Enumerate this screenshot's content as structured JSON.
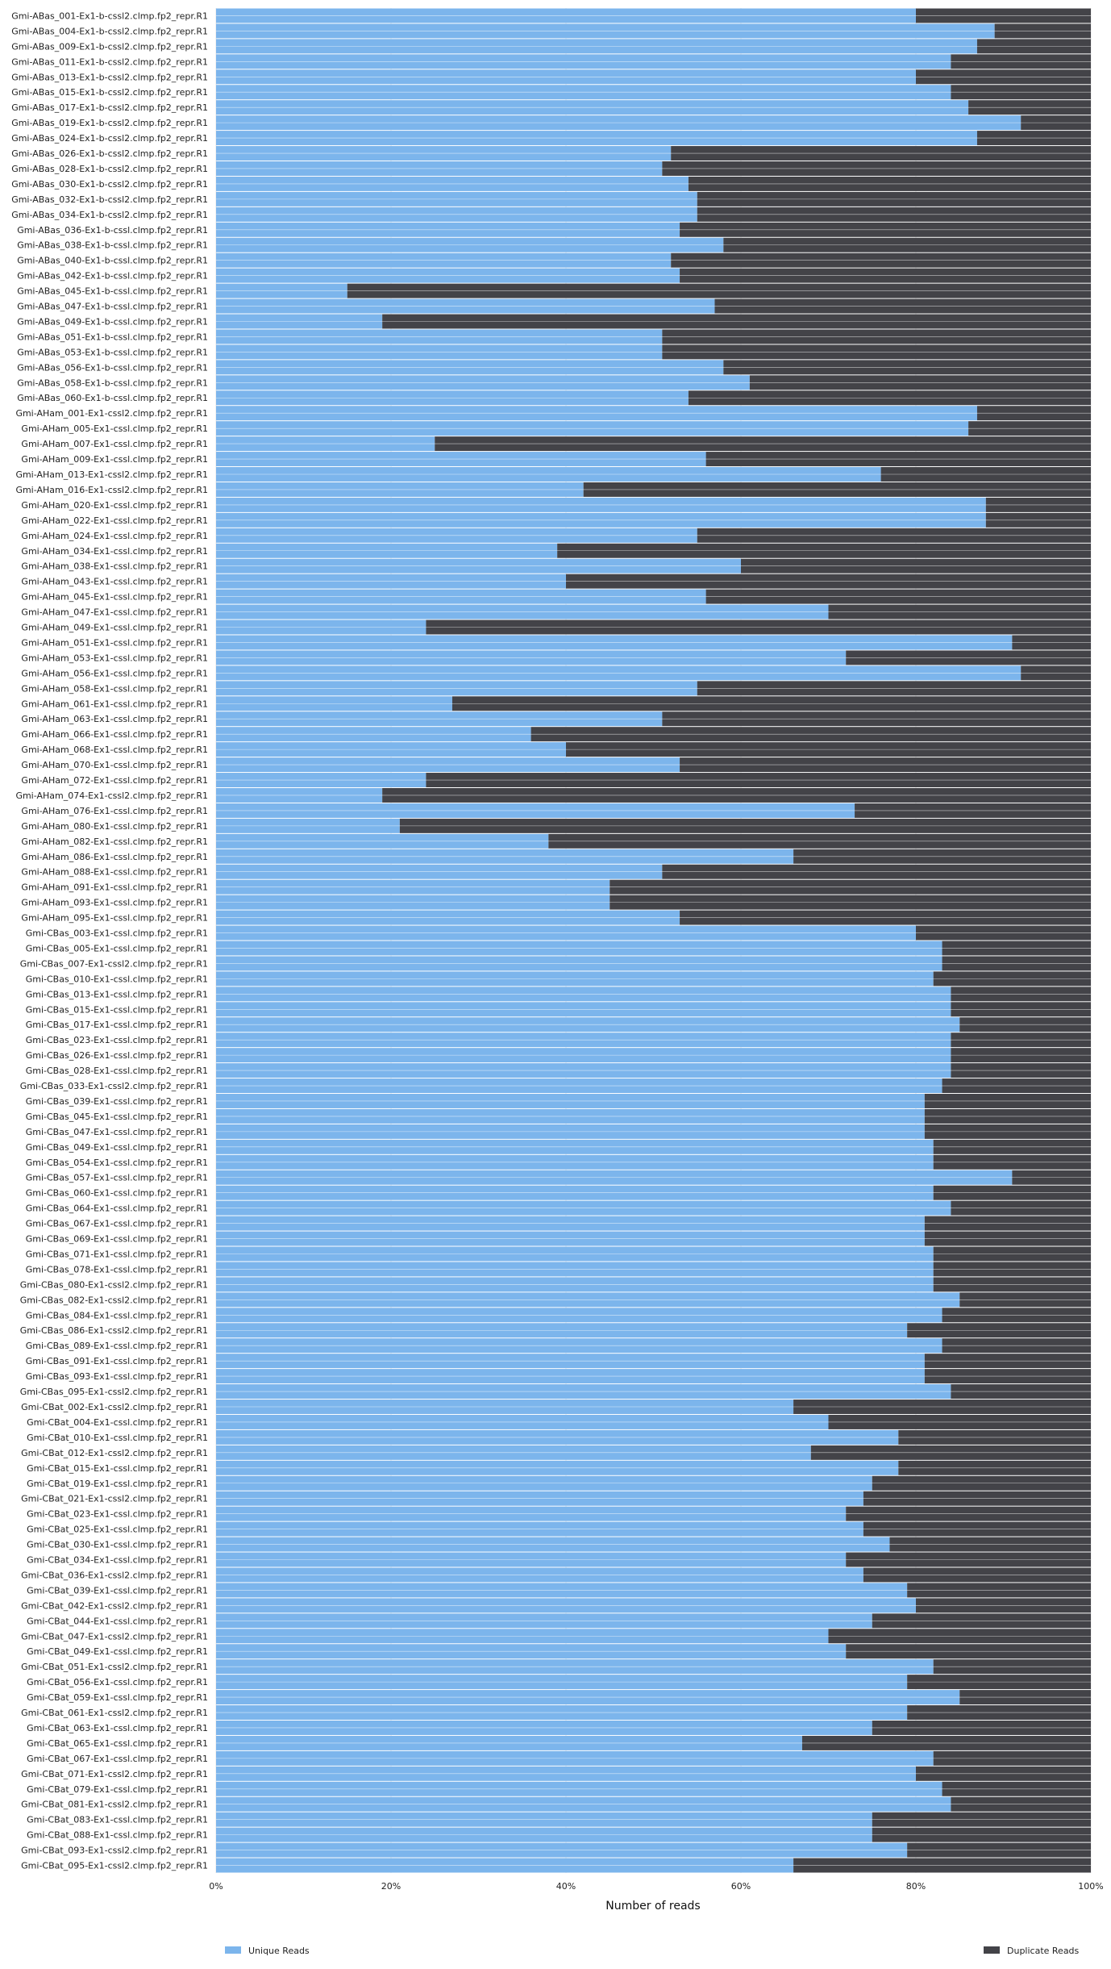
{
  "chart_data": {
    "type": "bar",
    "orientation": "horizontal",
    "stacked": true,
    "normalized_percent": true,
    "xlabel": "Number of reads",
    "x_ticks": [
      "0%",
      "20%",
      "40%",
      "60%",
      "80%",
      "100%"
    ],
    "xlim": [
      0,
      100
    ],
    "legend_placement": "bottom",
    "series": [
      {
        "name": "Unique Reads",
        "color": "#7cb5ec"
      },
      {
        "name": "Duplicate Reads",
        "color": "#434348"
      }
    ],
    "row_labels": [
      "Gmi-ABas_001-Ex1-b-cssl2.clmp.fp2_repr.R1",
      "Gmi-ABas_004-Ex1-b-cssl2.clmp.fp2_repr.R1",
      "Gmi-ABas_009-Ex1-b-cssl2.clmp.fp2_repr.R1",
      "Gmi-ABas_011-Ex1-b-cssl2.clmp.fp2_repr.R1",
      "Gmi-ABas_013-Ex1-b-cssl2.clmp.fp2_repr.R1",
      "Gmi-ABas_015-Ex1-b-cssl2.clmp.fp2_repr.R1",
      "Gmi-ABas_017-Ex1-b-cssl2.clmp.fp2_repr.R1",
      "Gmi-ABas_019-Ex1-b-cssl2.clmp.fp2_repr.R1",
      "Gmi-ABas_024-Ex1-b-cssl2.clmp.fp2_repr.R1",
      "Gmi-ABas_026-Ex1-b-cssl2.clmp.fp2_repr.R1",
      "Gmi-ABas_028-Ex1-b-cssl2.clmp.fp2_repr.R1",
      "Gmi-ABas_030-Ex1-b-cssl2.clmp.fp2_repr.R1",
      "Gmi-ABas_032-Ex1-b-cssl2.clmp.fp2_repr.R1",
      "Gmi-ABas_034-Ex1-b-cssl2.clmp.fp2_repr.R1",
      "Gmi-ABas_036-Ex1-b-cssl.clmp.fp2_repr.R1",
      "Gmi-ABas_038-Ex1-b-cssl.clmp.fp2_repr.R1",
      "Gmi-ABas_040-Ex1-b-cssl.clmp.fp2_repr.R1",
      "Gmi-ABas_042-Ex1-b-cssl.clmp.fp2_repr.R1",
      "Gmi-ABas_045-Ex1-b-cssl.clmp.fp2_repr.R1",
      "Gmi-ABas_047-Ex1-b-cssl.clmp.fp2_repr.R1",
      "Gmi-ABas_049-Ex1-b-cssl.clmp.fp2_repr.R1",
      "Gmi-ABas_051-Ex1-b-cssl.clmp.fp2_repr.R1",
      "Gmi-ABas_053-Ex1-b-cssl.clmp.fp2_repr.R1",
      "Gmi-ABas_056-Ex1-b-cssl.clmp.fp2_repr.R1",
      "Gmi-ABas_058-Ex1-b-cssl.clmp.fp2_repr.R1",
      "Gmi-ABas_060-Ex1-b-cssl.clmp.fp2_repr.R1",
      "Gmi-AHam_001-Ex1-cssl2.clmp.fp2_repr.R1",
      "Gmi-AHam_005-Ex1-cssl.clmp.fp2_repr.R1",
      "Gmi-AHam_007-Ex1-cssl.clmp.fp2_repr.R1",
      "Gmi-AHam_009-Ex1-cssl.clmp.fp2_repr.R1",
      "Gmi-AHam_013-Ex1-cssl2.clmp.fp2_repr.R1",
      "Gmi-AHam_016-Ex1-cssl2.clmp.fp2_repr.R1",
      "Gmi-AHam_020-Ex1-cssl.clmp.fp2_repr.R1",
      "Gmi-AHam_022-Ex1-cssl.clmp.fp2_repr.R1",
      "Gmi-AHam_024-Ex1-cssl.clmp.fp2_repr.R1",
      "Gmi-AHam_034-Ex1-cssl.clmp.fp2_repr.R1",
      "Gmi-AHam_038-Ex1-cssl.clmp.fp2_repr.R1",
      "Gmi-AHam_043-Ex1-cssl.clmp.fp2_repr.R1",
      "Gmi-AHam_045-Ex1-cssl.clmp.fp2_repr.R1",
      "Gmi-AHam_047-Ex1-cssl.clmp.fp2_repr.R1",
      "Gmi-AHam_049-Ex1-cssl.clmp.fp2_repr.R1",
      "Gmi-AHam_051-Ex1-cssl.clmp.fp2_repr.R1",
      "Gmi-AHam_053-Ex1-cssl.clmp.fp2_repr.R1",
      "Gmi-AHam_056-Ex1-cssl.clmp.fp2_repr.R1",
      "Gmi-AHam_058-Ex1-cssl.clmp.fp2_repr.R1",
      "Gmi-AHam_061-Ex1-cssl.clmp.fp2_repr.R1",
      "Gmi-AHam_063-Ex1-cssl.clmp.fp2_repr.R1",
      "Gmi-AHam_066-Ex1-cssl.clmp.fp2_repr.R1",
      "Gmi-AHam_068-Ex1-cssl.clmp.fp2_repr.R1",
      "Gmi-AHam_070-Ex1-cssl.clmp.fp2_repr.R1",
      "Gmi-AHam_072-Ex1-cssl.clmp.fp2_repr.R1",
      "Gmi-AHam_074-Ex1-cssl2.clmp.fp2_repr.R1",
      "Gmi-AHam_076-Ex1-cssl.clmp.fp2_repr.R1",
      "Gmi-AHam_080-Ex1-cssl.clmp.fp2_repr.R1",
      "Gmi-AHam_082-Ex1-cssl.clmp.fp2_repr.R1",
      "Gmi-AHam_086-Ex1-cssl.clmp.fp2_repr.R1",
      "Gmi-AHam_088-Ex1-cssl.clmp.fp2_repr.R1",
      "Gmi-AHam_091-Ex1-cssl.clmp.fp2_repr.R1",
      "Gmi-AHam_093-Ex1-cssl.clmp.fp2_repr.R1",
      "Gmi-AHam_095-Ex1-cssl.clmp.fp2_repr.R1",
      "Gmi-CBas_003-Ex1-cssl.clmp.fp2_repr.R1",
      "Gmi-CBas_005-Ex1-cssl.clmp.fp2_repr.R1",
      "Gmi-CBas_007-Ex1-cssl2.clmp.fp2_repr.R1",
      "Gmi-CBas_010-Ex1-cssl.clmp.fp2_repr.R1",
      "Gmi-CBas_013-Ex1-cssl.clmp.fp2_repr.R1",
      "Gmi-CBas_015-Ex1-cssl.clmp.fp2_repr.R1",
      "Gmi-CBas_017-Ex1-cssl.clmp.fp2_repr.R1",
      "Gmi-CBas_023-Ex1-cssl.clmp.fp2_repr.R1",
      "Gmi-CBas_026-Ex1-cssl.clmp.fp2_repr.R1",
      "Gmi-CBas_028-Ex1-cssl.clmp.fp2_repr.R1",
      "Gmi-CBas_033-Ex1-cssl2.clmp.fp2_repr.R1",
      "Gmi-CBas_039-Ex1-cssl.clmp.fp2_repr.R1",
      "Gmi-CBas_045-Ex1-cssl.clmp.fp2_repr.R1",
      "Gmi-CBas_047-Ex1-cssl.clmp.fp2_repr.R1",
      "Gmi-CBas_049-Ex1-cssl.clmp.fp2_repr.R1",
      "Gmi-CBas_054-Ex1-cssl.clmp.fp2_repr.R1",
      "Gmi-CBas_057-Ex1-cssl.clmp.fp2_repr.R1",
      "Gmi-CBas_060-Ex1-cssl.clmp.fp2_repr.R1",
      "Gmi-CBas_064-Ex1-cssl.clmp.fp2_repr.R1",
      "Gmi-CBas_067-Ex1-cssl.clmp.fp2_repr.R1",
      "Gmi-CBas_069-Ex1-cssl.clmp.fp2_repr.R1",
      "Gmi-CBas_071-Ex1-cssl.clmp.fp2_repr.R1",
      "Gmi-CBas_078-Ex1-cssl.clmp.fp2_repr.R1",
      "Gmi-CBas_080-Ex1-cssl2.clmp.fp2_repr.R1",
      "Gmi-CBas_082-Ex1-cssl2.clmp.fp2_repr.R1",
      "Gmi-CBas_084-Ex1-cssl.clmp.fp2_repr.R1",
      "Gmi-CBas_086-Ex1-cssl2.clmp.fp2_repr.R1",
      "Gmi-CBas_089-Ex1-cssl.clmp.fp2_repr.R1",
      "Gmi-CBas_091-Ex1-cssl.clmp.fp2_repr.R1",
      "Gmi-CBas_093-Ex1-cssl.clmp.fp2_repr.R1",
      "Gmi-CBas_095-Ex1-cssl2.clmp.fp2_repr.R1",
      "Gmi-CBat_002-Ex1-cssl2.clmp.fp2_repr.R1",
      "Gmi-CBat_004-Ex1-cssl.clmp.fp2_repr.R1",
      "Gmi-CBat_010-Ex1-cssl.clmp.fp2_repr.R1",
      "Gmi-CBat_012-Ex1-cssl2.clmp.fp2_repr.R1",
      "Gmi-CBat_015-Ex1-cssl.clmp.fp2_repr.R1",
      "Gmi-CBat_019-Ex1-cssl.clmp.fp2_repr.R1",
      "Gmi-CBat_021-Ex1-cssl2.clmp.fp2_repr.R1",
      "Gmi-CBat_023-Ex1-cssl.clmp.fp2_repr.R1",
      "Gmi-CBat_025-Ex1-cssl.clmp.fp2_repr.R1",
      "Gmi-CBat_030-Ex1-cssl.clmp.fp2_repr.R1",
      "Gmi-CBat_034-Ex1-cssl.clmp.fp2_repr.R1",
      "Gmi-CBat_036-Ex1-cssl2.clmp.fp2_repr.R1",
      "Gmi-CBat_039-Ex1-cssl.clmp.fp2_repr.R1",
      "Gmi-CBat_042-Ex1-cssl2.clmp.fp2_repr.R1",
      "Gmi-CBat_044-Ex1-cssl.clmp.fp2_repr.R1",
      "Gmi-CBat_047-Ex1-cssl2.clmp.fp2_repr.R1",
      "Gmi-CBat_049-Ex1-cssl.clmp.fp2_repr.R1",
      "Gmi-CBat_051-Ex1-cssl2.clmp.fp2_repr.R1",
      "Gmi-CBat_056-Ex1-cssl.clmp.fp2_repr.R1",
      "Gmi-CBat_059-Ex1-cssl.clmp.fp2_repr.R1",
      "Gmi-CBat_061-Ex1-cssl2.clmp.fp2_repr.R1",
      "Gmi-CBat_063-Ex1-cssl.clmp.fp2_repr.R1",
      "Gmi-CBat_065-Ex1-cssl.clmp.fp2_repr.R1",
      "Gmi-CBat_067-Ex1-cssl.clmp.fp2_repr.R1",
      "Gmi-CBat_071-Ex1-cssl2.clmp.fp2_repr.R1",
      "Gmi-CBat_079-Ex1-cssl.clmp.fp2_repr.R1",
      "Gmi-CBat_081-Ex1-cssl2.clmp.fp2_repr.R1",
      "Gmi-CBat_083-Ex1-cssl.clmp.fp2_repr.R1",
      "Gmi-CBat_088-Ex1-cssl.clmp.fp2_repr.R1",
      "Gmi-CBat_093-Ex1-cssl2.clmp.fp2_repr.R1",
      "Gmi-CBat_095-Ex1-cssl2.clmp.fp2_repr.R1"
    ],
    "unique_pct": [
      80,
      89,
      87,
      84,
      80,
      84,
      86,
      92,
      87,
      52,
      51,
      54,
      55,
      55,
      53,
      58,
      52,
      53,
      15,
      57,
      19,
      51,
      51,
      58,
      61,
      54,
      87,
      86,
      25,
      56,
      76,
      42,
      88,
      88,
      55,
      39,
      60,
      40,
      56,
      70,
      24,
      91,
      72,
      92,
      55,
      27,
      51,
      36,
      40,
      53,
      24,
      19,
      73,
      21,
      38,
      66,
      51,
      45,
      45,
      53,
      80,
      83,
      83,
      82,
      84,
      84,
      85,
      84,
      84,
      84,
      83,
      81,
      81,
      81,
      82,
      82,
      91,
      82,
      84,
      81,
      81,
      82,
      82,
      82,
      85,
      83,
      79,
      83,
      81,
      81,
      84,
      66,
      70,
      78,
      68,
      78,
      75,
      74,
      72,
      74,
      77,
      72,
      74,
      79,
      80,
      75,
      70,
      72,
      82,
      79,
      85,
      79,
      75,
      67,
      82,
      80,
      83,
      84,
      75,
      75,
      79,
      66
    ]
  }
}
